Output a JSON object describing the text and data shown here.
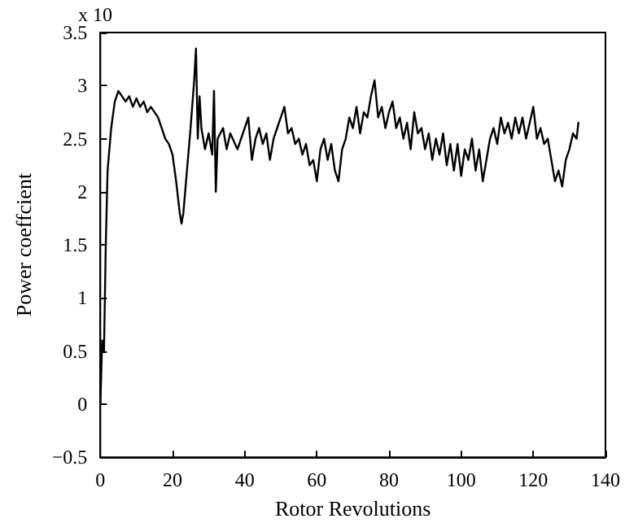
{
  "chart_data": {
    "type": "line",
    "xlabel": "Rotor Revolutions",
    "ylabel": "Power coeffcient",
    "annotations": [
      "x 10"
    ],
    "x": [
      0,
      0.5,
      1,
      1.5,
      2,
      3,
      4,
      5,
      6,
      7,
      8,
      9,
      10,
      11,
      12,
      13,
      14,
      15,
      16,
      17,
      18,
      19,
      20,
      21,
      22,
      22.5,
      23,
      24,
      25,
      26,
      26.5,
      27,
      27.5,
      28,
      29,
      30,
      31,
      31.5,
      32,
      32.5,
      34,
      35,
      36,
      38,
      40,
      41,
      42,
      43,
      44,
      45,
      46,
      47,
      48,
      49,
      50,
      51,
      52,
      53,
      54,
      55,
      56,
      57,
      58,
      59,
      60,
      61,
      62,
      63,
      64,
      65,
      66,
      67,
      68,
      69,
      70,
      71,
      72,
      73,
      74,
      75,
      76,
      77,
      78,
      79,
      80,
      81,
      82,
      83,
      84,
      85,
      86,
      87,
      88,
      89,
      90,
      91,
      92,
      93,
      94,
      95,
      96,
      97,
      98,
      99,
      100,
      101,
      102,
      103,
      104,
      105,
      106,
      107,
      108,
      109,
      110,
      111,
      112,
      113,
      114,
      115,
      116,
      117,
      118,
      119,
      120,
      121,
      122,
      123,
      124,
      125,
      126,
      127,
      128,
      129,
      130,
      131,
      132,
      132.5
    ],
    "series": [
      {
        "color": "#000000",
        "values": [
          0,
          0.6,
          0.5,
          1.5,
          2.2,
          2.6,
          2.85,
          2.95,
          2.9,
          2.85,
          2.9,
          2.8,
          2.88,
          2.8,
          2.85,
          2.75,
          2.8,
          2.75,
          2.7,
          2.6,
          2.5,
          2.45,
          2.35,
          2.1,
          1.8,
          1.7,
          1.8,
          2.2,
          2.6,
          3.05,
          3.35,
          2.5,
          2.9,
          2.6,
          2.4,
          2.55,
          2.35,
          2.95,
          2.0,
          2.5,
          2.6,
          2.4,
          2.55,
          2.4,
          2.6,
          2.7,
          2.3,
          2.5,
          2.6,
          2.45,
          2.55,
          2.3,
          2.5,
          2.6,
          2.7,
          2.8,
          2.55,
          2.6,
          2.45,
          2.5,
          2.35,
          2.45,
          2.25,
          2.3,
          2.1,
          2.4,
          2.5,
          2.3,
          2.45,
          2.2,
          2.1,
          2.4,
          2.5,
          2.7,
          2.6,
          2.8,
          2.55,
          2.75,
          2.7,
          2.9,
          3.05,
          2.7,
          2.8,
          2.6,
          2.75,
          2.85,
          2.6,
          2.7,
          2.5,
          2.65,
          2.4,
          2.75,
          2.55,
          2.6,
          2.4,
          2.55,
          2.3,
          2.5,
          2.35,
          2.55,
          2.25,
          2.45,
          2.2,
          2.45,
          2.15,
          2.4,
          2.3,
          2.5,
          2.2,
          2.4,
          2.1,
          2.3,
          2.5,
          2.6,
          2.45,
          2.7,
          2.55,
          2.65,
          2.5,
          2.7,
          2.55,
          2.7,
          2.5,
          2.65,
          2.8,
          2.5,
          2.6,
          2.45,
          2.5,
          2.3,
          2.1,
          2.2,
          2.05,
          2.3,
          2.4,
          2.55,
          2.5,
          2.65
        ]
      }
    ],
    "xlim": [
      0,
      140
    ],
    "xticks": [
      0,
      20,
      40,
      60,
      80,
      100,
      120,
      140
    ],
    "ylim": [
      -0.5,
      3.5
    ],
    "yticks": [
      -0.5,
      0,
      0.5,
      1,
      1.5,
      2,
      2.5,
      3,
      3.5
    ],
    "marker": "none",
    "line_style": "solid"
  }
}
